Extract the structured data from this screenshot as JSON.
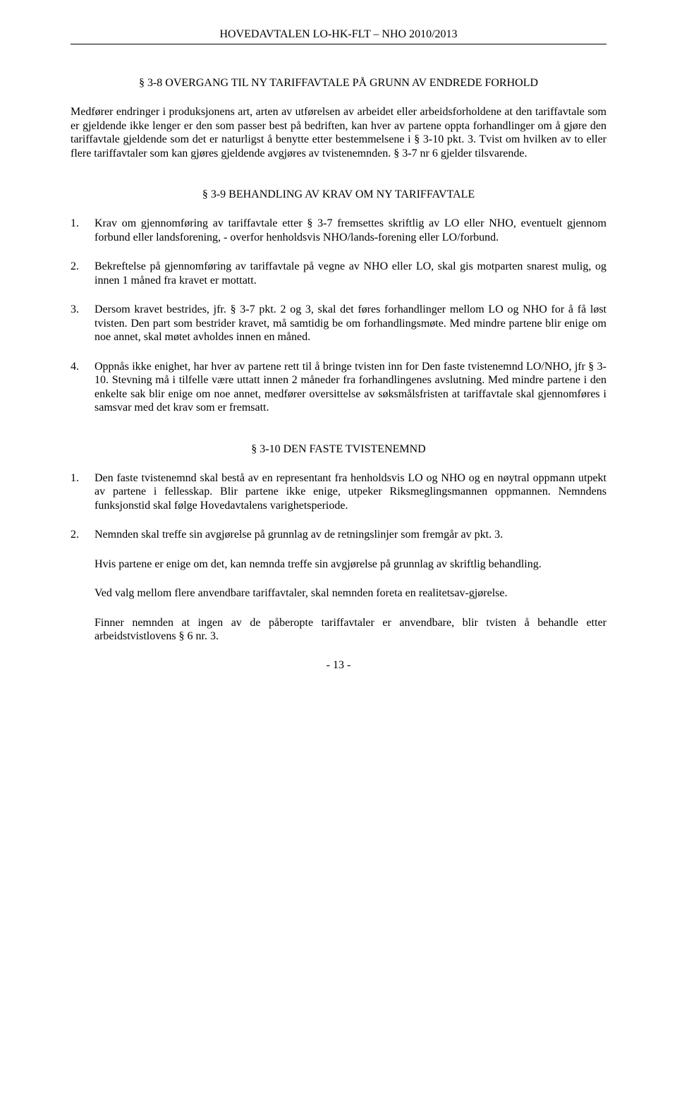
{
  "header": "HOVEDAVTALEN LO-HK-FLT – NHO 2010/2013",
  "section_3_8": {
    "heading": "§ 3-8 OVERGANG TIL NY TARIFFAVTALE PÅ GRUNN AV ENDREDE FORHOLD",
    "body": "Medfører endringer i produksjonens art, arten av utførelsen av arbeidet eller arbeidsforholdene at den tariffavtale som er gjeldende ikke lenger er den som passer best på bedriften, kan hver av partene oppta forhandlinger om å gjøre den tariffavtale gjeldende som det er naturligst å benytte etter bestemmelsene i § 3-10 pkt. 3. Tvist om hvilken av to eller flere tariffavtaler som kan gjøres gjeldende avgjøres av tvistenemnden. § 3-7 nr 6 gjelder tilsvarende."
  },
  "section_3_9": {
    "heading": "§ 3-9 BEHANDLING AV KRAV OM NY TARIFFAVTALE",
    "items": [
      {
        "num": "1.",
        "text": "Krav om gjennomføring av tariffavtale etter § 3-7 fremsettes skriftlig av LO eller NHO, eventuelt gjennom forbund eller landsforening, - overfor henholdsvis NHO/lands-forening eller LO/forbund."
      },
      {
        "num": "2.",
        "text": "Bekreftelse på gjennomføring av tariffavtale på vegne av NHO eller LO, skal gis motparten snarest mulig, og innen 1 måned fra kravet er mottatt."
      },
      {
        "num": "3.",
        "text": "Dersom kravet bestrides, jfr. § 3-7 pkt. 2 og 3, skal det føres forhandlinger mellom LO og NHO for å få løst tvisten. Den part som bestrider kravet, må samtidig be om forhandlingsmøte. Med mindre partene blir enige om noe annet, skal møtet avholdes innen en måned."
      },
      {
        "num": "4.",
        "text": "Oppnås ikke enighet, har hver av partene rett til å bringe tvisten inn for Den faste tvistenemnd LO/NHO, jfr § 3-10. Stevning må i tilfelle være uttatt innen 2 måneder fra forhandlingenes avslutning. Med mindre partene i den enkelte sak blir enige om noe annet, medfører oversittelse av søksmålsfristen at tariffavtale skal gjennomføres i samsvar med det krav som er fremsatt."
      }
    ]
  },
  "section_3_10": {
    "heading": "§ 3-10 DEN FASTE TVISTENEMND",
    "items": [
      {
        "num": "1.",
        "paras": [
          "Den faste tvistenemnd skal bestå av en representant fra henholdsvis LO og NHO og en nøytral oppmann utpekt av partene i fellesskap. Blir partene ikke enige, utpeker Riksmeglingsmannen oppmannen. Nemndens funksjonstid skal følge Hovedavtalens varighetsperiode."
        ]
      },
      {
        "num": "2.",
        "paras": [
          "Nemnden skal treffe sin avgjørelse på grunnlag av de retningslinjer som fremgår av pkt. 3.",
          "Hvis partene er enige om det, kan nemnda treffe sin avgjørelse på grunnlag av skriftlig behandling.",
          "Ved valg mellom flere anvendbare tariffavtaler, skal nemnden foreta en realitetsav-gjørelse.",
          "Finner nemnden at ingen av de påberopte tariffavtaler er anvendbare, blir tvisten å behandle etter arbeidstvistlovens § 6 nr. 3."
        ]
      }
    ]
  },
  "page_number": "- 13 -"
}
